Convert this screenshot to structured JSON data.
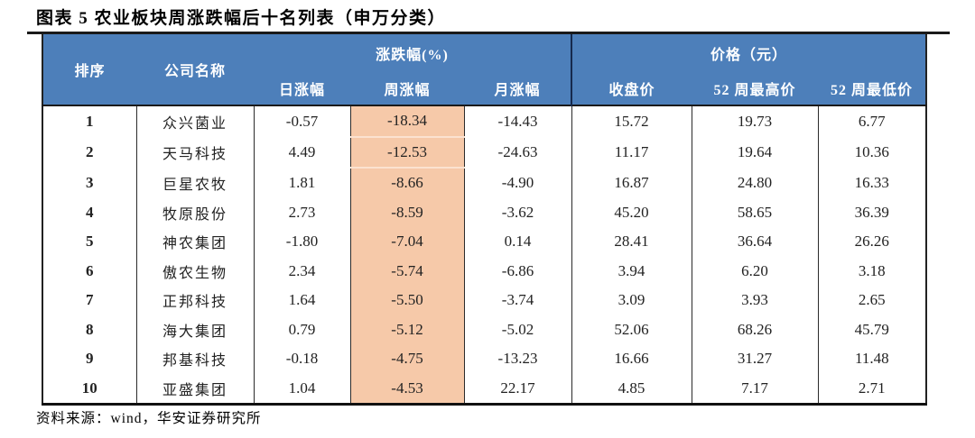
{
  "figure": {
    "title": "图表 5 农业板块周涨跌幅后十名列表（申万分类）",
    "source": "资料来源：wind，华安证券研究所"
  },
  "colors": {
    "header_bg": "#4d7fba",
    "header_text": "#ffffff",
    "highlight_bg": "#f6c9a9",
    "rule_dark": "#1a1a1a"
  },
  "table": {
    "columns": {
      "rank": "排序",
      "company": "公司名称",
      "change_group": "涨跌幅(%)",
      "price_group": "价格（元）",
      "day": "日涨幅",
      "week": "周涨幅",
      "month": "月涨幅",
      "close": "收盘价",
      "high52": "52 周最高价",
      "low52": "52 周最低价"
    },
    "rows": [
      {
        "rank": "1",
        "name": "众兴菌业",
        "day": "-0.57",
        "week": "-18.34",
        "month": "-14.43",
        "close": "15.72",
        "high52": "19.73",
        "low52": "6.77"
      },
      {
        "rank": "2",
        "name": "天马科技",
        "day": "4.49",
        "week": "-12.53",
        "month": "-24.63",
        "close": "11.17",
        "high52": "19.64",
        "low52": "10.36"
      },
      {
        "rank": "3",
        "name": "巨星农牧",
        "day": "1.81",
        "week": "-8.66",
        "month": "-4.90",
        "close": "16.87",
        "high52": "24.80",
        "low52": "16.33"
      },
      {
        "rank": "4",
        "name": "牧原股份",
        "day": "2.73",
        "week": "-8.59",
        "month": "-3.62",
        "close": "45.20",
        "high52": "58.65",
        "low52": "36.39"
      },
      {
        "rank": "5",
        "name": "神农集团",
        "day": "-1.80",
        "week": "-7.04",
        "month": "0.14",
        "close": "28.41",
        "high52": "36.64",
        "low52": "26.26"
      },
      {
        "rank": "6",
        "name": "傲农生物",
        "day": "2.34",
        "week": "-5.74",
        "month": "-6.86",
        "close": "3.94",
        "high52": "6.20",
        "low52": "3.18"
      },
      {
        "rank": "7",
        "name": "正邦科技",
        "day": "1.64",
        "week": "-5.50",
        "month": "-3.74",
        "close": "3.09",
        "high52": "3.93",
        "low52": "2.65"
      },
      {
        "rank": "8",
        "name": "海大集团",
        "day": "0.79",
        "week": "-5.12",
        "month": "-5.02",
        "close": "52.06",
        "high52": "68.26",
        "low52": "45.79"
      },
      {
        "rank": "9",
        "name": "邦基科技",
        "day": "-0.18",
        "week": "-4.75",
        "month": "-13.23",
        "close": "16.66",
        "high52": "31.27",
        "low52": "11.48"
      },
      {
        "rank": "10",
        "name": "亚盛集团",
        "day": "1.04",
        "week": "-4.53",
        "month": "22.17",
        "close": "4.85",
        "high52": "7.17",
        "low52": "2.71"
      }
    ]
  },
  "chart_data": {
    "type": "table",
    "title": "图表 5 农业板块周涨跌幅后十名列表（申万分类）",
    "columns": [
      "排序",
      "公司名称",
      "日涨幅",
      "周涨幅",
      "月涨幅",
      "收盘价",
      "52 周最高价",
      "52 周最低价"
    ],
    "rows": [
      [
        "1",
        "众兴菌业",
        "-0.57",
        "-18.34",
        "-14.43",
        "15.72",
        "19.73",
        "6.77"
      ],
      [
        "2",
        "天马科技",
        "4.49",
        "-12.53",
        "-24.63",
        "11.17",
        "19.64",
        "10.36"
      ],
      [
        "3",
        "巨星农牧",
        "1.81",
        "-8.66",
        "-4.90",
        "16.87",
        "24.80",
        "16.33"
      ],
      [
        "4",
        "牧原股份",
        "2.73",
        "-8.59",
        "-3.62",
        "45.20",
        "58.65",
        "36.39"
      ],
      [
        "5",
        "神农集团",
        "-1.80",
        "-7.04",
        "0.14",
        "28.41",
        "36.64",
        "26.26"
      ],
      [
        "6",
        "傲农生物",
        "2.34",
        "-5.74",
        "-6.86",
        "3.94",
        "6.20",
        "3.18"
      ],
      [
        "7",
        "正邦科技",
        "1.64",
        "-5.50",
        "-3.74",
        "3.09",
        "3.93",
        "2.65"
      ],
      [
        "8",
        "海大集团",
        "0.79",
        "-5.12",
        "-5.02",
        "52.06",
        "68.26",
        "45.79"
      ],
      [
        "9",
        "邦基科技",
        "-0.18",
        "-4.75",
        "-13.23",
        "16.66",
        "31.27",
        "11.48"
      ],
      [
        "10",
        "亚盛集团",
        "1.04",
        "-4.53",
        "22.17",
        "4.85",
        "7.17",
        "2.71"
      ]
    ],
    "highlighted_column": "周涨幅",
    "source": "资料来源：wind，华安证券研究所"
  }
}
